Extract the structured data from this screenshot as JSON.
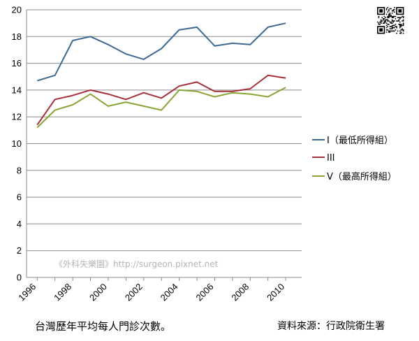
{
  "chart_data": {
    "type": "line",
    "x": [
      1996,
      1997,
      1998,
      1999,
      2000,
      2001,
      2002,
      2003,
      2004,
      2005,
      2006,
      2007,
      2008,
      2009,
      2010
    ],
    "x_ticks": [
      "1996",
      "1998",
      "2000",
      "2002",
      "2004",
      "2006",
      "2008",
      "2010"
    ],
    "ylim": [
      0,
      20
    ],
    "y_ticks": [
      "0",
      "2",
      "4",
      "6",
      "8",
      "10",
      "12",
      "14",
      "16",
      "18",
      "20"
    ],
    "grid": "horizontal",
    "legend_position": "right",
    "series": [
      {
        "name": "I（最低所得組）",
        "color": "#3b6a95",
        "values": [
          14.7,
          15.1,
          17.7,
          18.0,
          17.4,
          16.7,
          16.3,
          17.1,
          18.5,
          18.7,
          17.3,
          17.5,
          17.4,
          18.7,
          19.0
        ]
      },
      {
        "name": "III",
        "color": "#a8303a",
        "values": [
          11.4,
          13.3,
          13.6,
          14.0,
          13.7,
          13.3,
          13.8,
          13.4,
          14.3,
          14.6,
          13.9,
          13.9,
          14.1,
          15.1,
          14.9
        ]
      },
      {
        "name": "V（最高所得組）",
        "color": "#8aa535",
        "values": [
          11.2,
          12.5,
          12.9,
          13.7,
          12.8,
          13.1,
          12.8,
          12.5,
          14.0,
          13.9,
          13.5,
          13.8,
          13.7,
          13.5,
          14.2
        ]
      }
    ]
  },
  "watermark": "《外科失樂園》http://surgeon.pixnet.net",
  "caption_left": "台灣歷年平均每人門診次數。",
  "caption_right": "資料來源：行政院衛生署",
  "qr_icon": "qr-code-icon"
}
